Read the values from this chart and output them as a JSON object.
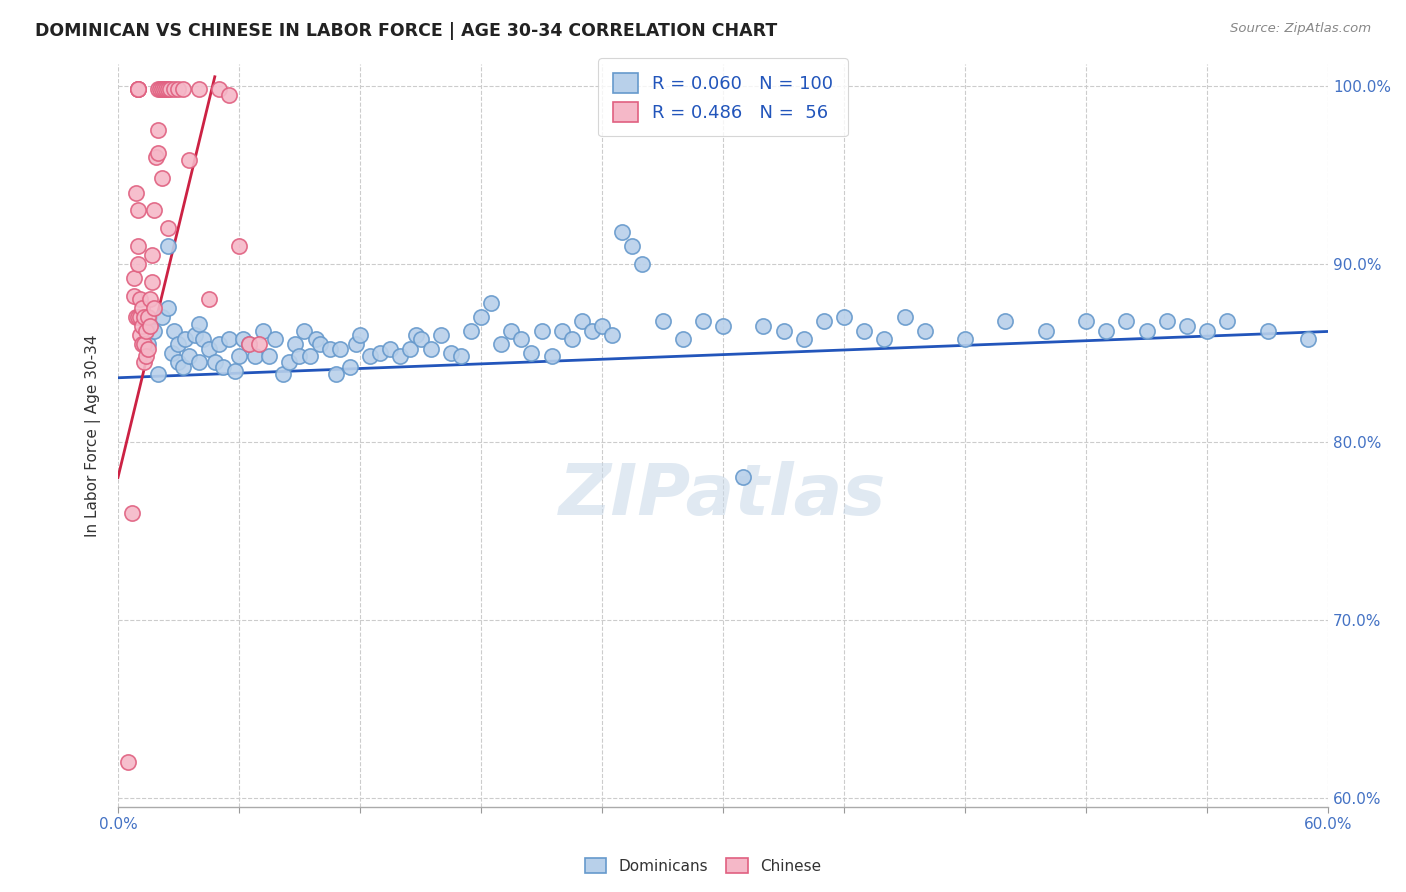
{
  "title": "DOMINICAN VS CHINESE IN LABOR FORCE | AGE 30-34 CORRELATION CHART",
  "source": "Source: ZipAtlas.com",
  "ylabel": "In Labor Force | Age 30-34",
  "xmin": 0.0,
  "xmax": 0.6,
  "ymin": 0.595,
  "ymax": 1.012,
  "yticks": [
    0.6,
    0.7,
    0.8,
    0.9,
    1.0
  ],
  "ytick_labels": [
    "60.0%",
    "70.0%",
    "80.0%",
    "90.0%",
    "100.0%"
  ],
  "legend_blue_r": "0.060",
  "legend_blue_n": "100",
  "legend_pink_r": "0.486",
  "legend_pink_n": " 56",
  "blue_face": "#b8d0ea",
  "blue_edge": "#6699cc",
  "pink_face": "#f5b8c8",
  "pink_edge": "#e06080",
  "blue_line": "#2255bb",
  "pink_line": "#cc2244",
  "watermark": "ZIPatlas",
  "blue_trend_x": [
    0.0,
    0.6
  ],
  "blue_trend_y": [
    0.836,
    0.862
  ],
  "pink_trend_x": [
    0.0,
    0.048
  ],
  "pink_trend_y": [
    0.78,
    1.005
  ],
  "blue_scatter_x": [
    0.015,
    0.018,
    0.02,
    0.022,
    0.025,
    0.025,
    0.027,
    0.028,
    0.03,
    0.03,
    0.032,
    0.033,
    0.035,
    0.038,
    0.04,
    0.04,
    0.042,
    0.045,
    0.048,
    0.05,
    0.052,
    0.055,
    0.058,
    0.06,
    0.062,
    0.065,
    0.068,
    0.072,
    0.075,
    0.078,
    0.082,
    0.085,
    0.088,
    0.09,
    0.092,
    0.095,
    0.098,
    0.1,
    0.105,
    0.108,
    0.11,
    0.115,
    0.118,
    0.12,
    0.125,
    0.13,
    0.135,
    0.14,
    0.145,
    0.148,
    0.15,
    0.155,
    0.16,
    0.165,
    0.17,
    0.175,
    0.18,
    0.185,
    0.19,
    0.195,
    0.2,
    0.205,
    0.21,
    0.215,
    0.22,
    0.225,
    0.23,
    0.235,
    0.24,
    0.245,
    0.25,
    0.255,
    0.26,
    0.27,
    0.28,
    0.29,
    0.3,
    0.31,
    0.32,
    0.33,
    0.34,
    0.35,
    0.36,
    0.37,
    0.38,
    0.39,
    0.4,
    0.42,
    0.44,
    0.46,
    0.48,
    0.49,
    0.5,
    0.51,
    0.52,
    0.53,
    0.54,
    0.55,
    0.57,
    0.59
  ],
  "blue_scatter_y": [
    0.855,
    0.862,
    0.838,
    0.87,
    0.91,
    0.875,
    0.85,
    0.862,
    0.845,
    0.855,
    0.842,
    0.858,
    0.848,
    0.86,
    0.866,
    0.845,
    0.858,
    0.852,
    0.845,
    0.855,
    0.842,
    0.858,
    0.84,
    0.848,
    0.858,
    0.855,
    0.848,
    0.862,
    0.848,
    0.858,
    0.838,
    0.845,
    0.855,
    0.848,
    0.862,
    0.848,
    0.858,
    0.855,
    0.852,
    0.838,
    0.852,
    0.842,
    0.855,
    0.86,
    0.848,
    0.85,
    0.852,
    0.848,
    0.852,
    0.86,
    0.858,
    0.852,
    0.86,
    0.85,
    0.848,
    0.862,
    0.87,
    0.878,
    0.855,
    0.862,
    0.858,
    0.85,
    0.862,
    0.848,
    0.862,
    0.858,
    0.868,
    0.862,
    0.865,
    0.86,
    0.918,
    0.91,
    0.9,
    0.868,
    0.858,
    0.868,
    0.865,
    0.78,
    0.865,
    0.862,
    0.858,
    0.868,
    0.87,
    0.862,
    0.858,
    0.87,
    0.862,
    0.858,
    0.868,
    0.862,
    0.868,
    0.862,
    0.868,
    0.862,
    0.868,
    0.865,
    0.862,
    0.868,
    0.862,
    0.858
  ],
  "pink_scatter_x": [
    0.005,
    0.007,
    0.008,
    0.008,
    0.009,
    0.009,
    0.01,
    0.01,
    0.01,
    0.01,
    0.01,
    0.01,
    0.01,
    0.01,
    0.011,
    0.011,
    0.011,
    0.012,
    0.012,
    0.012,
    0.013,
    0.013,
    0.013,
    0.014,
    0.014,
    0.015,
    0.015,
    0.016,
    0.016,
    0.017,
    0.017,
    0.018,
    0.018,
    0.019,
    0.02,
    0.02,
    0.02,
    0.021,
    0.022,
    0.022,
    0.023,
    0.024,
    0.025,
    0.025,
    0.026,
    0.028,
    0.03,
    0.032,
    0.035,
    0.04,
    0.045,
    0.05,
    0.055,
    0.06,
    0.065,
    0.07
  ],
  "pink_scatter_y": [
    0.62,
    0.76,
    0.892,
    0.882,
    0.87,
    0.94,
    0.91,
    0.9,
    0.93,
    0.998,
    0.998,
    0.998,
    0.998,
    0.87,
    0.88,
    0.87,
    0.86,
    0.875,
    0.865,
    0.855,
    0.87,
    0.855,
    0.845,
    0.862,
    0.848,
    0.87,
    0.852,
    0.88,
    0.865,
    0.905,
    0.89,
    0.93,
    0.875,
    0.96,
    0.998,
    0.975,
    0.962,
    0.998,
    0.998,
    0.948,
    0.998,
    0.998,
    0.998,
    0.92,
    0.998,
    0.998,
    0.998,
    0.998,
    0.958,
    0.998,
    0.88,
    0.998,
    0.995,
    0.91,
    0.855,
    0.855
  ]
}
